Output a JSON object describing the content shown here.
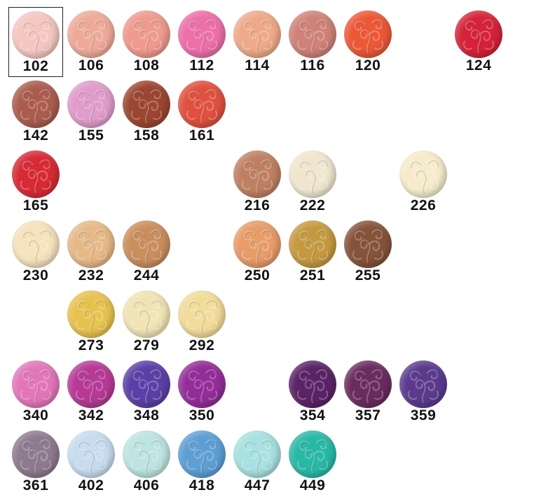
{
  "palette": {
    "selected_code": "102",
    "rows": [
      [
        {
          "code": "102",
          "col": 0,
          "color": "#f5c6c1"
        },
        {
          "code": "106",
          "col": 1,
          "color": "#eeaa99"
        },
        {
          "code": "108",
          "col": 2,
          "color": "#ef9a8e"
        },
        {
          "code": "112",
          "col": 3,
          "color": "#ec6fa9"
        },
        {
          "code": "114",
          "col": 4,
          "color": "#eeaa88"
        },
        {
          "code": "116",
          "col": 5,
          "color": "#cf8278"
        },
        {
          "code": "120",
          "col": 6,
          "color": "#ec5836"
        },
        {
          "code": "124",
          "col": 8,
          "color": "#d52238"
        }
      ],
      [
        {
          "code": "142",
          "col": 0,
          "color": "#ab5c4e"
        },
        {
          "code": "155",
          "col": 1,
          "color": "#e09cca"
        },
        {
          "code": "158",
          "col": 2,
          "color": "#9c4530"
        },
        {
          "code": "161",
          "col": 3,
          "color": "#e0503e"
        }
      ],
      [
        {
          "code": "165",
          "col": 0,
          "color": "#d82a34"
        },
        {
          "code": "216",
          "col": 4,
          "color": "#bf8062"
        },
        {
          "code": "222",
          "col": 5,
          "color": "#f0e6cf"
        },
        {
          "code": "226",
          "col": 7,
          "color": "#f6eccb"
        }
      ],
      [
        {
          "code": "230",
          "col": 0,
          "color": "#f6e2bb"
        },
        {
          "code": "232",
          "col": 1,
          "color": "#e6b986"
        },
        {
          "code": "244",
          "col": 2,
          "color": "#c98e5e"
        },
        {
          "code": "250",
          "col": 4,
          "color": "#e89c68"
        },
        {
          "code": "251",
          "col": 5,
          "color": "#c59940"
        },
        {
          "code": "255",
          "col": 6,
          "color": "#85523a"
        }
      ],
      [
        {
          "code": "273",
          "col": 1,
          "color": "#e8c24f"
        },
        {
          "code": "279",
          "col": 2,
          "color": "#f0e4b4"
        },
        {
          "code": "292",
          "col": 3,
          "color": "#f1dc9a"
        }
      ],
      [
        {
          "code": "340",
          "col": 0,
          "color": "#e276b9"
        },
        {
          "code": "342",
          "col": 1,
          "color": "#b63a95"
        },
        {
          "code": "348",
          "col": 2,
          "color": "#5c3fa6"
        },
        {
          "code": "350",
          "col": 3,
          "color": "#932d98"
        },
        {
          "code": "354",
          "col": 5,
          "color": "#5a2366"
        },
        {
          "code": "357",
          "col": 6,
          "color": "#6a2c5e"
        },
        {
          "code": "359",
          "col": 7,
          "color": "#5b3a8e"
        }
      ],
      [
        {
          "code": "361",
          "col": 0,
          "color": "#8e7a8e"
        },
        {
          "code": "402",
          "col": 1,
          "color": "#c7dcef"
        },
        {
          "code": "406",
          "col": 2,
          "color": "#bde4e1"
        },
        {
          "code": "418",
          "col": 3,
          "color": "#5d9fd5"
        },
        {
          "code": "447",
          "col": 4,
          "color": "#a7e1e1"
        },
        {
          "code": "449",
          "col": 5,
          "color": "#28b9a6"
        }
      ]
    ]
  }
}
